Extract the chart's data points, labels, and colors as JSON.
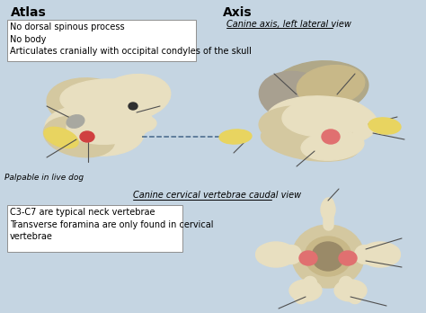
{
  "bg_color": "#c5d5e2",
  "title_atlas": "Atlas",
  "title_axis": "Axis",
  "atlas_box_text": "No dorsal spinous process\nNo body\nArticulates cranially with occipital condyles of the skull",
  "axis_subtitle": "Canine axis, left lateral view",
  "bottom_subtitle": "Canine cervical vertebrae caudal view",
  "bottom_box_text": "C3-C7 are typical neck vertebrae\nTransverse foramina are only found in cervical\nvertebrae",
  "palpable_text": "Palpable in live dog",
  "bone_light": "#e8dfc0",
  "bone_mid": "#d4c8a0",
  "bone_dark": "#b8a878",
  "bone_gray": "#b0a888",
  "bone_tan": "#c8b888",
  "yellow": "#e8d460",
  "red": "#d04040",
  "red_light": "#e07070",
  "line_col": "#505050",
  "box_bg": "#ffffff",
  "box_edge": "#909090"
}
